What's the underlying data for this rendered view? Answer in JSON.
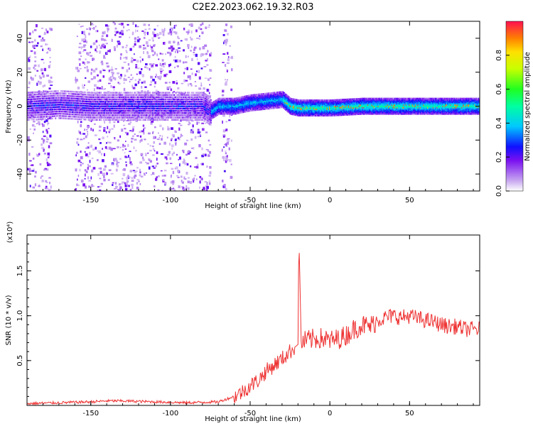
{
  "title": "C2E2.2023.062.19.32.R03",
  "chart_data": [
    {
      "type": "heatmap",
      "xlabel": "Height of straight line (km)",
      "ylabel": "Frequency (Hz)",
      "xlim": [
        -190,
        94
      ],
      "ylim": [
        -50,
        50
      ],
      "x_ticks": [
        -150,
        -100,
        -50,
        0,
        50
      ],
      "y_ticks": [
        -40,
        -20,
        0,
        20,
        40
      ],
      "colorbar": {
        "label": "Normalized spectral amplitude",
        "range": [
          0,
          1
        ],
        "ticks": [
          "0.0",
          "0.2",
          "0.4",
          "0.6",
          "0.8"
        ]
      },
      "ridge_center_hz": {
        "x": [
          -190,
          -170,
          -150,
          -130,
          -110,
          -90,
          -80,
          -75,
          -70,
          -60,
          -50,
          -40,
          -30,
          -25,
          -20,
          0,
          20,
          50,
          94
        ],
        "y": [
          0,
          1,
          0,
          0,
          0,
          0,
          0,
          -3,
          0,
          0,
          2,
          3,
          4,
          0,
          -1,
          -1,
          0,
          0,
          0
        ]
      },
      "noise_regions_km": [
        [
          -190,
          -175
        ],
        [
          -160,
          -115
        ],
        [
          -115,
          -75
        ],
        [
          -68,
          -62
        ]
      ]
    },
    {
      "type": "line",
      "xlabel": "Height of straight line (km)",
      "ylabel": "SNR (10 * v/v)",
      "y_multiplier": "(x10⁴)",
      "xlim": [
        -190,
        94
      ],
      "ylim": [
        0,
        1.9
      ],
      "x_ticks": [
        -150,
        -100,
        -50,
        0,
        50
      ],
      "y_ticks": [
        "0.5",
        "1.0",
        "1.5"
      ],
      "color": "#ee3333",
      "series": [
        {
          "x": [
            -190,
            -170,
            -150,
            -140,
            -130,
            -110,
            -90,
            -70,
            -65,
            -60,
            -55,
            -50,
            -45,
            -40,
            -35,
            -30,
            -25,
            -20,
            -19.5,
            -18,
            -15,
            -10,
            -5,
            0,
            5,
            10,
            15,
            20,
            25,
            30,
            35,
            40,
            45,
            50,
            55,
            60,
            65,
            70,
            75,
            80,
            85,
            94
          ],
          "y": [
            0.02,
            0.03,
            0.04,
            0.05,
            0.05,
            0.04,
            0.03,
            0.04,
            0.07,
            0.1,
            0.15,
            0.22,
            0.28,
            0.38,
            0.45,
            0.52,
            0.6,
            0.68,
            1.9,
            0.7,
            0.72,
            0.74,
            0.75,
            0.72,
            0.74,
            0.78,
            0.85,
            0.9,
            0.88,
            0.95,
            0.98,
            1.0,
            0.98,
            1.0,
            0.97,
            0.95,
            0.93,
            0.9,
            0.88,
            0.88,
            0.85,
            0.85
          ]
        }
      ]
    }
  ]
}
